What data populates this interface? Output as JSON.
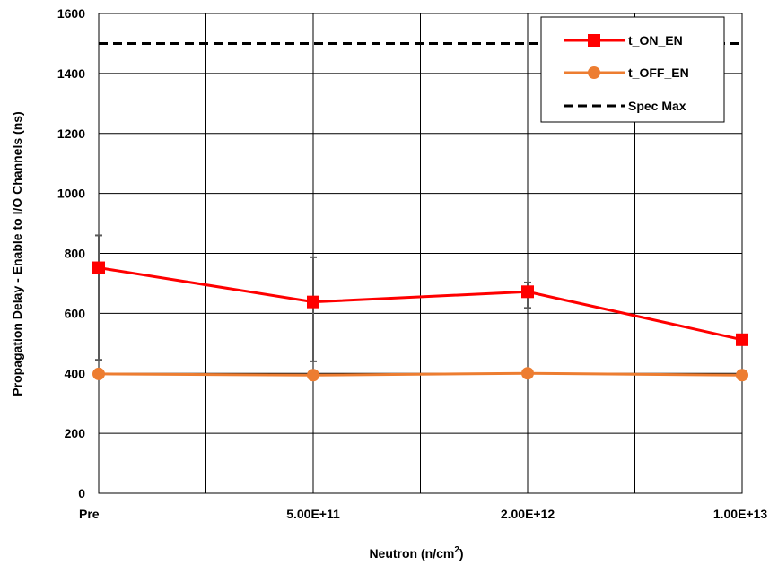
{
  "chart_data": {
    "type": "line",
    "categories": [
      "Pre",
      "5.00E+11",
      "2.00E+12",
      "1.00E+13"
    ],
    "ylabel": "Propagation Delay - Enable to I/O Channels (ns)",
    "xlabel_main": "Neutron (n/cm",
    "xlabel_sup": "2",
    "xlabel_end": ")",
    "ylim": [
      0,
      1600
    ],
    "yticks": [
      0,
      200,
      400,
      600,
      800,
      1000,
      1200,
      1400,
      1600
    ],
    "y_tick_labels": [
      "0",
      "200",
      "400",
      "600",
      "800",
      "1000",
      "1200",
      "1400",
      "1600"
    ],
    "grid": true,
    "legend_position": "top-right",
    "series": [
      {
        "name": "t_ON_EN",
        "color": "#ff0000",
        "marker": "square",
        "values": [
          752,
          638,
          672,
          512
        ],
        "error_low": [
          445,
          440,
          618,
          null
        ],
        "error_high": [
          860,
          787,
          703,
          null
        ]
      },
      {
        "name": "t_OFF_EN",
        "color": "#ed7d31",
        "marker": "circle",
        "values": [
          398,
          394,
          400,
          394
        ]
      },
      {
        "name": "Spec Max",
        "color": "#000000",
        "line_style": "dashed",
        "values": [
          1500,
          1500,
          1500,
          1500
        ]
      }
    ]
  }
}
